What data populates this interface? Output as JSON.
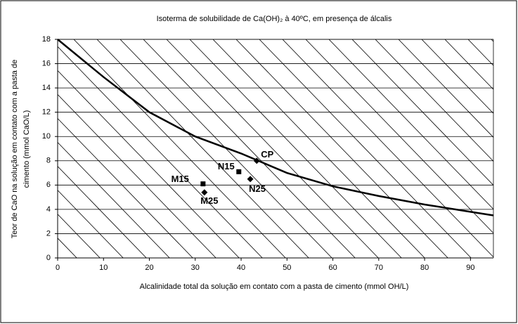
{
  "chart_data": {
    "type": "scatter",
    "title": "Isoterma de solubilidade de Ca(OH)₂ à 40ºC, em presença de álcalis",
    "x_label": "Alcalinidade total da solução em contato com a pasta de cimento (mmol OH/L)",
    "y_label": [
      "Teor de CaO na solução em contato com a pasta de",
      "cimento (mmol CaO/L)"
    ],
    "xlim": [
      0,
      95
    ],
    "ylim": [
      0,
      18
    ],
    "xticks": [
      0,
      10,
      20,
      30,
      40,
      50,
      60,
      70,
      80,
      90
    ],
    "yticks": [
      0,
      2,
      4,
      6,
      8,
      10,
      12,
      14,
      16,
      18
    ],
    "grid": true,
    "curve": {
      "color": "#000000",
      "x": [
        0,
        10,
        20,
        30,
        40,
        50,
        60,
        70,
        80,
        90,
        95
      ],
      "y": [
        18,
        14.9,
        12,
        10,
        8.6,
        7,
        5.9,
        5.1,
        4.4,
        3.8,
        3.5
      ]
    },
    "points": [
      {
        "label": "CP",
        "x": 43.4,
        "y": 8.0,
        "marker": "diamond"
      },
      {
        "label": "N15",
        "x": 39.5,
        "y": 7.1,
        "marker": "square"
      },
      {
        "label": "M15",
        "x": 31.7,
        "y": 6.1,
        "marker": "square"
      },
      {
        "label": "N25",
        "x": 42,
        "y": 6.5,
        "marker": "diamond"
      },
      {
        "label": "M25",
        "x": 32,
        "y": 5.4,
        "marker": "diamond"
      }
    ],
    "point_color": "#000000"
  }
}
